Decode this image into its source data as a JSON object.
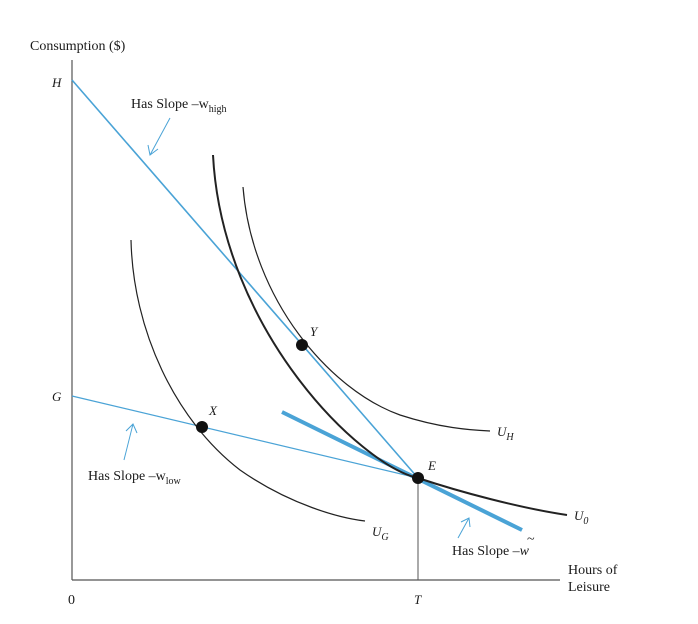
{
  "diagram": {
    "y_axis_label": "Consumption ($)",
    "x_axis_label_line1": "Hours of",
    "x_axis_label_line2": "Leisure",
    "origin_label": "0",
    "y_tick_H": "H",
    "y_tick_G": "G",
    "x_tick_T": "T",
    "points": {
      "Y": "Y",
      "X": "X",
      "E": "E"
    },
    "curves": {
      "U0": "U",
      "U0_sub": "0",
      "UH": "U",
      "UH_sub": "H",
      "UG": "U",
      "UG_sub": "G"
    },
    "annotations": {
      "high": {
        "prefix": "Has Slope –w",
        "sub": "high"
      },
      "low": {
        "prefix": "Has Slope –w",
        "sub": "low"
      },
      "tilde": {
        "prefix": "Has Slope –",
        "var": "w",
        "accent": "~"
      }
    },
    "colors": {
      "line": "#4aa3d6",
      "curve": "#222222",
      "axis": "#555555"
    }
  }
}
